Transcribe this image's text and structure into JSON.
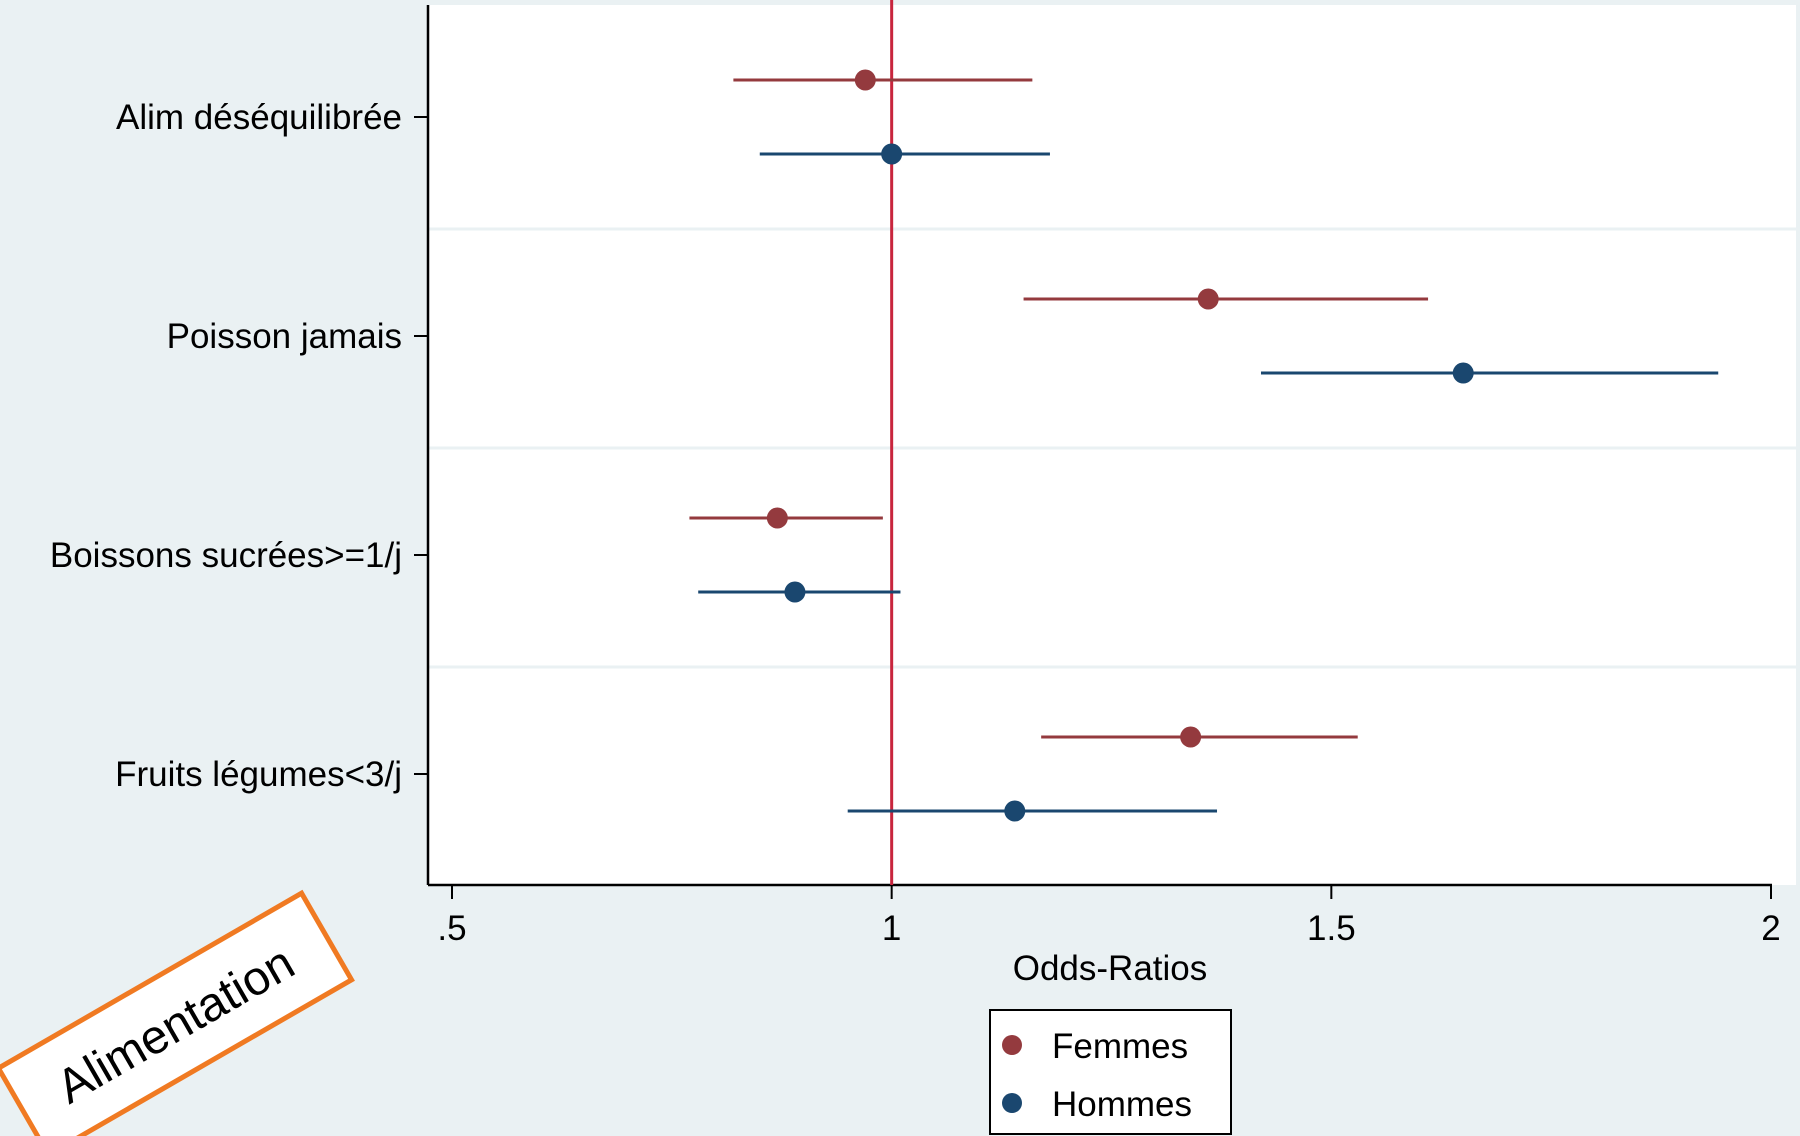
{
  "chart_data": {
    "type": "scatter",
    "subtype": "forest-plot",
    "title": "",
    "xlabel": "Odds-Ratios",
    "ylabel": "",
    "xlim": [
      0.47,
      2.01
    ],
    "xticks": [
      ".5",
      "1",
      "1.5",
      "2"
    ],
    "xtick_values": [
      0.5,
      1,
      1.5,
      2
    ],
    "reference_line": 1,
    "categories": [
      "Alim déséquilibrée",
      "Poisson jamais",
      "Boissons sucrées>=1/j",
      "Fruits légumes<3/j"
    ],
    "series": [
      {
        "name": "Femmes",
        "color": "#943a3e",
        "or": [
          0.97,
          1.36,
          0.87,
          1.34
        ],
        "ci_low": [
          0.82,
          1.15,
          0.77,
          1.17
        ],
        "ci_high": [
          1.16,
          1.61,
          0.99,
          1.53
        ]
      },
      {
        "name": "Hommes",
        "color": "#1a476f",
        "or": [
          1.0,
          1.65,
          0.89,
          1.14
        ],
        "ci_low": [
          0.85,
          1.42,
          0.78,
          0.95
        ],
        "ci_high": [
          1.18,
          1.94,
          1.01,
          1.37
        ]
      }
    ],
    "reference_line_color": "#c8253d",
    "grid": true,
    "legend_position": "bottom"
  },
  "stamp": {
    "label": "Alimentation",
    "border_color": "#f07a22"
  }
}
